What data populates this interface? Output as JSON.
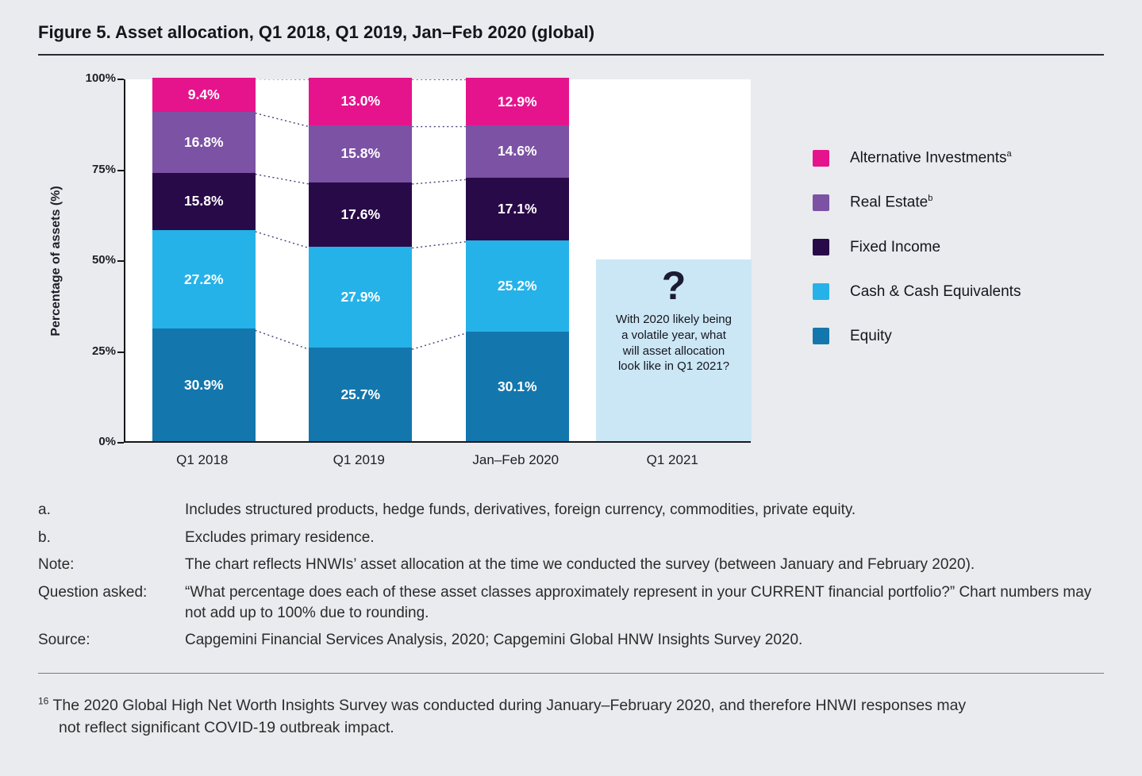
{
  "figure": {
    "title": "Figure 5. Asset allocation, Q1 2018, Q1 2019, Jan–Feb 2020 (global)"
  },
  "chart_data": {
    "type": "bar",
    "stacked": true,
    "title": "Figure 5. Asset allocation, Q1 2018, Q1 2019, Jan–Feb 2020 (global)",
    "ylabel": "Percentage of assets  (%)",
    "ylim": [
      0,
      100
    ],
    "yticks": [
      "0%",
      "25%",
      "50%",
      "75%",
      "100%"
    ],
    "categories": [
      "Q1 2018",
      "Q1 2019",
      "Jan–Feb 2020",
      "Q1 2021"
    ],
    "series": [
      {
        "name": "Equity",
        "color": "#1377ad",
        "values": [
          30.9,
          25.7,
          30.1
        ]
      },
      {
        "name": "Cash & Cash Equivalents",
        "color": "#25b2e8",
        "values": [
          27.2,
          27.9,
          25.2
        ]
      },
      {
        "name": "Fixed Income",
        "color": "#290a48",
        "values": [
          15.8,
          17.6,
          17.1
        ]
      },
      {
        "name": "Real Estate",
        "color": "#7c52a4",
        "values": [
          16.8,
          15.8,
          14.6
        ]
      },
      {
        "name": "Alternative Investments",
        "color": "#e5148c",
        "values": [
          9.4,
          13.0,
          12.9
        ]
      }
    ],
    "placeholder": {
      "category": "Q1 2021",
      "height_pct": 50,
      "question_mark": "?",
      "text": "With 2020 likely being a volatile year, what will asset allocation look like in Q1 2021?",
      "color": "#cbe7f6"
    },
    "legend_position": "right",
    "legend": [
      {
        "label": "Alternative Investments",
        "superscript": "a",
        "color": "#e5148c"
      },
      {
        "label": "Real Estate",
        "superscript": "b",
        "color": "#7c52a4"
      },
      {
        "label": "Fixed Income",
        "superscript": "",
        "color": "#290a48"
      },
      {
        "label": "Cash & Cash Equivalents",
        "superscript": "",
        "color": "#25b2e8"
      },
      {
        "label": "Equity",
        "superscript": "",
        "color": "#1377ad"
      }
    ],
    "grid": false
  },
  "footnotes": {
    "rows": [
      {
        "label": "a.",
        "text": "Includes structured products, hedge funds, derivatives, foreign currency, commodities, private equity."
      },
      {
        "label": "b.",
        "text": "Excludes primary residence."
      },
      {
        "label": "Note:",
        "text": "The chart reflects HNWIs’ asset allocation at the time we conducted the survey (between January and February 2020)."
      },
      {
        "label": "Question asked:",
        "text": "“What percentage does each of these asset classes approximately represent in your CURRENT financial portfolio?” Chart numbers may not add up to 100% due to rounding."
      },
      {
        "label": "Source:",
        "text": "Capgemini Financial Services Analysis, 2020; Capgemini Global HNW Insights Survey 2020."
      }
    ]
  },
  "page_footnote": {
    "marker": "16",
    "text": "The 2020 Global High Net Worth Insights Survey was conducted during January–February 2020, and therefore HNWI responses may not reflect significant COVID-19 outbreak impact."
  }
}
